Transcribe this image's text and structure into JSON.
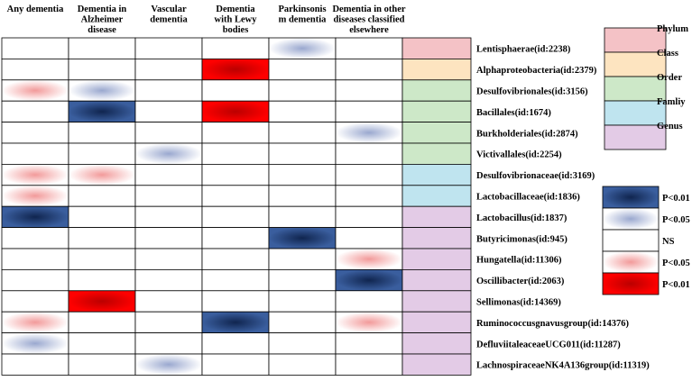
{
  "chart_data": {
    "type": "heatmap",
    "columns": [
      "Any dementia",
      "Dementia in Alzheimer disease",
      "Vascular dementia",
      "Dementia with Lewy bodies",
      "Parkinsonism dementia",
      "Dementia in other diseases classified elsewhere"
    ],
    "column_header_lines": [
      [
        "Any dementia"
      ],
      [
        "Dementia in",
        "Alzheimer",
        "disease"
      ],
      [
        "Vascular",
        "dementia"
      ],
      [
        "Dementia",
        "with Lewy",
        "bodies"
      ],
      [
        "Parkinsonis",
        "m dementia"
      ],
      [
        "Dementia in other",
        "diseases classified",
        "elsewhere"
      ]
    ],
    "rows": [
      {
        "label": "Lentisphaerae(id:2238)",
        "taxon": "Phylum",
        "values": [
          "NS",
          "NS",
          "NS",
          "NS",
          "P<0.05 negative",
          "NS"
        ]
      },
      {
        "label": "Alphaproteobacteria(id:2379)",
        "taxon": "Class",
        "values": [
          "NS",
          "NS",
          "NS",
          "P<0.01 positive",
          "NS",
          "NS"
        ]
      },
      {
        "label": "Desulfovibrionales(id:3156)",
        "taxon": "Order",
        "values": [
          "P<0.05 positive",
          "P<0.05 negative",
          "NS",
          "NS",
          "NS",
          "NS"
        ]
      },
      {
        "label": "Bacillales(id:1674)",
        "taxon": "Order",
        "values": [
          "NS",
          "P<0.01 negative",
          "NS",
          "P<0.01 positive",
          "NS",
          "NS"
        ]
      },
      {
        "label": "Burkholderiales(id:2874)",
        "taxon": "Order",
        "values": [
          "NS",
          "NS",
          "NS",
          "NS",
          "NS",
          "P<0.05 negative"
        ]
      },
      {
        "label": "Victivallales(id:2254)",
        "taxon": "Order",
        "values": [
          "NS",
          "NS",
          "P<0.05 negative",
          "NS",
          "NS",
          "NS"
        ]
      },
      {
        "label": "Desulfovibrionaceae(id:3169)",
        "taxon": "Famliy",
        "values": [
          "P<0.05 positive",
          "P<0.05 positive",
          "NS",
          "NS",
          "NS",
          "NS"
        ]
      },
      {
        "label": "Lactobacillaceae(id:1836)",
        "taxon": "Famliy",
        "values": [
          "P<0.05 positive",
          "NS",
          "NS",
          "NS",
          "NS",
          "NS"
        ]
      },
      {
        "label": "Lactobacillus(id:1837)",
        "taxon": "Genus",
        "values": [
          "P<0.01 negative",
          "NS",
          "NS",
          "NS",
          "NS",
          "NS"
        ]
      },
      {
        "label": "Butyricimonas(id:945)",
        "taxon": "Genus",
        "values": [
          "NS",
          "NS",
          "NS",
          "NS",
          "P<0.01 negative",
          "NS"
        ]
      },
      {
        "label": "Hungatella(id:11306)",
        "taxon": "Genus",
        "values": [
          "NS",
          "NS",
          "NS",
          "NS",
          "NS",
          "P<0.05 positive"
        ]
      },
      {
        "label": "Oscillibacter(id:2063)",
        "taxon": "Genus",
        "values": [
          "NS",
          "NS",
          "NS",
          "NS",
          "NS",
          "P<0.01 negative"
        ]
      },
      {
        "label": "Sellimonas(id:14369)",
        "taxon": "Genus",
        "values": [
          "NS",
          "P<0.01 positive",
          "NS",
          "NS",
          "NS",
          "NS"
        ]
      },
      {
        "label": "Ruminococcusgnavusgroup(id:14376)",
        "taxon": "Genus",
        "values": [
          "P<0.05 positive",
          "NS",
          "NS",
          "P<0.01 negative",
          "NS",
          "P<0.05 positive"
        ]
      },
      {
        "label": "DefluviitaleaceaeUCG011(id:11287)",
        "taxon": "Genus",
        "values": [
          "P<0.05 negative",
          "NS",
          "NS",
          "NS",
          "NS",
          "NS"
        ]
      },
      {
        "label": "LachnospiraceaeNK4A136group(id:11319)",
        "taxon": "Genus",
        "values": [
          "NS",
          "NS",
          "P<0.05 negative",
          "NS",
          "NS",
          "NS"
        ]
      }
    ],
    "taxon_legend": [
      {
        "name": "Phylum",
        "color": "#f4c2c6"
      },
      {
        "name": "Class",
        "color": "#fde4c0"
      },
      {
        "name": "Order",
        "color": "#cde8c8"
      },
      {
        "name": "Famliy",
        "color": "#bfe4ef"
      },
      {
        "name": "Genus",
        "color": "#e3cbe6"
      }
    ],
    "significance_legend": [
      {
        "label": "P<0.01",
        "key": "P<0.01 negative"
      },
      {
        "label": "P<0.05",
        "key": "P<0.05 negative"
      },
      {
        "label": "NS",
        "key": "NS"
      },
      {
        "label": "P<0.05",
        "key": "P<0.05 positive"
      },
      {
        "label": "P<0.01",
        "key": "P<0.01 positive"
      }
    ],
    "colors": {
      "P<0.01 negative": {
        "edge": "#3a5e9e",
        "center": "#10254f"
      },
      "P<0.05 negative": {
        "edge": "#ffffff",
        "center": "#9aa8cf"
      },
      "NS": {
        "edge": "#ffffff",
        "center": "#ffffff"
      },
      "P<0.05 positive": {
        "edge": "#ffffff",
        "center": "#f29a9a"
      },
      "P<0.01 positive": {
        "edge": "#ff0000",
        "center": "#bb0000"
      }
    },
    "grid_color": "#000000"
  }
}
